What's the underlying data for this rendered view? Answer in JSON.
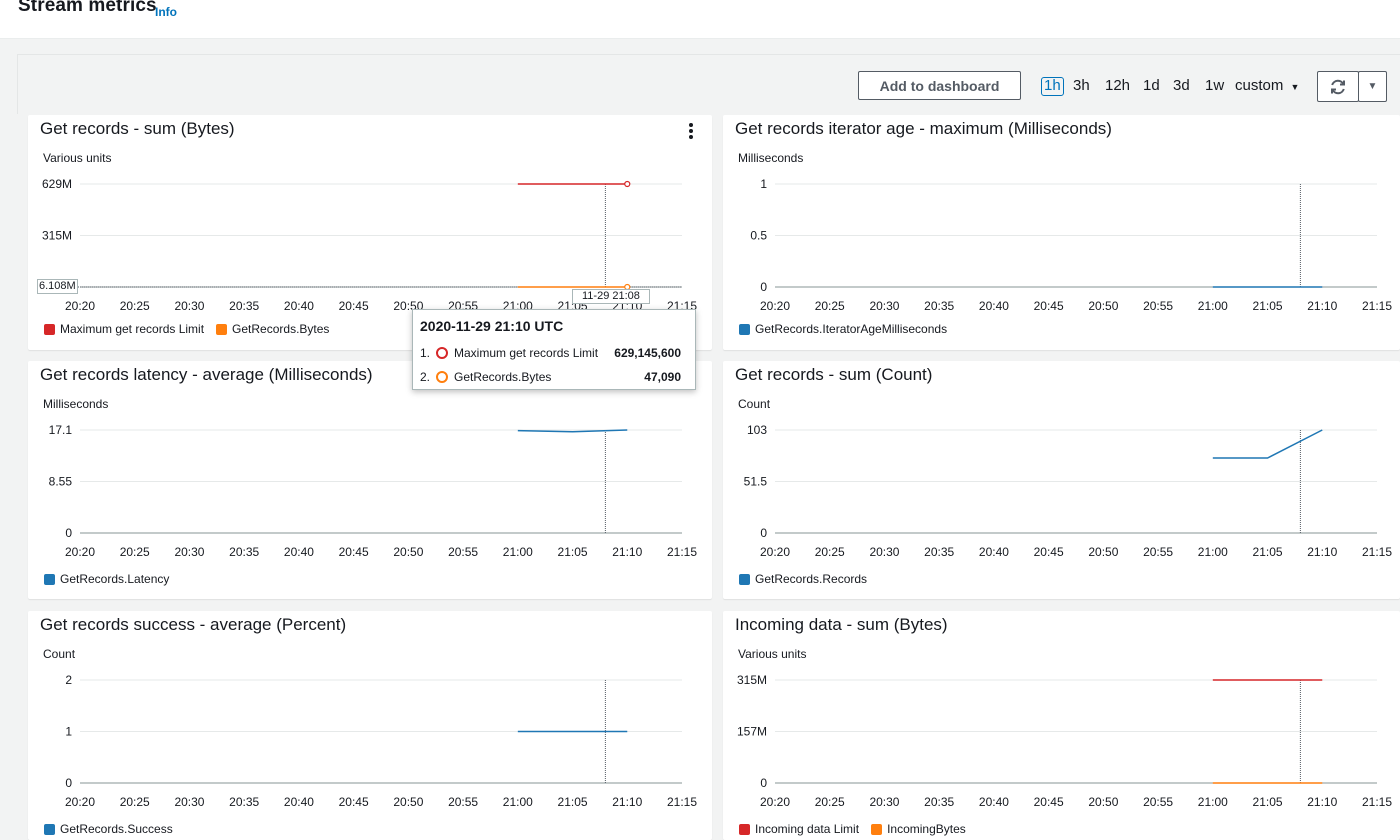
{
  "header": {
    "title": "Stream metrics",
    "info_label": "Info"
  },
  "toolbar": {
    "add_to_dashboard": "Add to dashboard",
    "ranges": [
      "1h",
      "3h",
      "12h",
      "1d",
      "3d",
      "1w"
    ],
    "active_range": "1h",
    "custom_label": "custom"
  },
  "colors": {
    "blue": "#1f77b4",
    "red": "#d62728",
    "orange": "#ff7f0e",
    "accent": "#0073bb"
  },
  "chart_data": [
    {
      "type": "line",
      "title": "Get records - sum (Bytes)",
      "ylabel": "Various units",
      "xticks": [
        "20:20",
        "20:25",
        "20:30",
        "20:35",
        "20:40",
        "20:45",
        "20:50",
        "20:55",
        "21:00",
        "21:05",
        "21:10",
        "21:15"
      ],
      "yticks": [
        "629M",
        "315M",
        "6.108M"
      ],
      "ylim": [
        0,
        629
      ],
      "series": [
        {
          "name": "Maximum get records Limit",
          "color": "red",
          "x": [
            "21:00",
            "21:10"
          ],
          "y": [
            629,
            629
          ]
        },
        {
          "name": "GetRecords.Bytes",
          "color": "orange",
          "x": [
            "21:00",
            "21:10"
          ],
          "y": [
            0.047,
            0.047
          ]
        }
      ],
      "hover_x": "21:08",
      "hover_x_label": "11-29 21:08",
      "hover_y_label": "6.108M"
    },
    {
      "type": "line",
      "title": "Get records iterator age - maximum (Milliseconds)",
      "ylabel": "Milliseconds",
      "xticks": [
        "20:20",
        "20:25",
        "20:30",
        "20:35",
        "20:40",
        "20:45",
        "20:50",
        "20:55",
        "21:00",
        "21:05",
        "21:10",
        "21:15"
      ],
      "yticks": [
        "1",
        "0.5",
        "0"
      ],
      "ylim": [
        0,
        1
      ],
      "series": [
        {
          "name": "GetRecords.IteratorAgeMilliseconds",
          "color": "blue",
          "x": [
            "21:00",
            "21:10"
          ],
          "y": [
            0,
            0
          ]
        }
      ],
      "hover_x": "21:08"
    },
    {
      "type": "line",
      "title": "Get records latency - average (Milliseconds)",
      "ylabel": "Milliseconds",
      "xticks": [
        "20:20",
        "20:25",
        "20:30",
        "20:35",
        "20:40",
        "20:45",
        "20:50",
        "20:55",
        "21:00",
        "21:05",
        "21:10",
        "21:15"
      ],
      "yticks": [
        "17.1",
        "8.55",
        "0"
      ],
      "ylim": [
        0,
        17.1
      ],
      "series": [
        {
          "name": "GetRecords.Latency",
          "color": "blue",
          "x": [
            "21:00",
            "21:05",
            "21:10"
          ],
          "y": [
            17.0,
            16.8,
            17.1
          ]
        }
      ],
      "hover_x": "21:08"
    },
    {
      "type": "line",
      "title": "Get records - sum (Count)",
      "ylabel": "Count",
      "xticks": [
        "20:20",
        "20:25",
        "20:30",
        "20:35",
        "20:40",
        "20:45",
        "20:50",
        "20:55",
        "21:00",
        "21:05",
        "21:10",
        "21:15"
      ],
      "yticks": [
        "103",
        "51.5",
        "0"
      ],
      "ylim": [
        0,
        103
      ],
      "series": [
        {
          "name": "GetRecords.Records",
          "color": "blue",
          "x": [
            "21:00",
            "21:05",
            "21:10"
          ],
          "y": [
            75,
            75,
            103
          ]
        }
      ],
      "hover_x": "21:08"
    },
    {
      "type": "line",
      "title": "Get records success - average (Percent)",
      "ylabel": "Count",
      "xticks": [
        "20:20",
        "20:25",
        "20:30",
        "20:35",
        "20:40",
        "20:45",
        "20:50",
        "20:55",
        "21:00",
        "21:05",
        "21:10",
        "21:15"
      ],
      "yticks": [
        "2",
        "1",
        "0"
      ],
      "ylim": [
        0,
        2
      ],
      "series": [
        {
          "name": "GetRecords.Success",
          "color": "blue",
          "x": [
            "21:00",
            "21:10"
          ],
          "y": [
            1,
            1
          ]
        }
      ],
      "hover_x": "21:08"
    },
    {
      "type": "line",
      "title": "Incoming data - sum (Bytes)",
      "ylabel": "Various units",
      "xticks": [
        "20:20",
        "20:25",
        "20:30",
        "20:35",
        "20:40",
        "20:45",
        "20:50",
        "20:55",
        "21:00",
        "21:05",
        "21:10",
        "21:15"
      ],
      "yticks": [
        "315M",
        "157M",
        "0"
      ],
      "ylim": [
        0,
        315
      ],
      "series": [
        {
          "name": "Incoming data Limit",
          "color": "red",
          "x": [
            "21:00",
            "21:10"
          ],
          "y": [
            315,
            315
          ]
        },
        {
          "name": "IncomingBytes",
          "color": "orange",
          "x": [
            "21:00",
            "21:10"
          ],
          "y": [
            0,
            0
          ]
        }
      ],
      "hover_x": "21:08"
    }
  ],
  "tooltip": {
    "title": "2020-11-29 21:10 UTC",
    "rows": [
      {
        "index": "1.",
        "label": "Maximum get records Limit",
        "value": "629,145,600",
        "color": "red"
      },
      {
        "index": "2.",
        "label": "GetRecords.Bytes",
        "value": "47,090",
        "color": "orange"
      }
    ]
  }
}
